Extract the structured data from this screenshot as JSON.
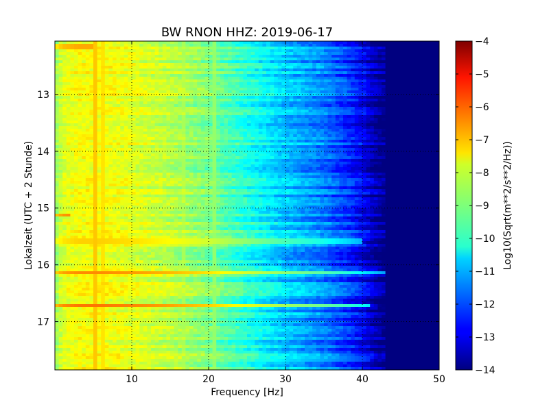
{
  "chart_data": {
    "type": "heatmap",
    "title": "BW RNON HHZ: 2019-06-17",
    "xlabel": "Frequency [Hz]",
    "ylabel": "Lokalzeit (UTC + 2 Stunde)",
    "xlim": [
      0,
      50
    ],
    "ylim": [
      12.06,
      17.85
    ],
    "y_inverted": true,
    "x_ticks": [
      10,
      20,
      30,
      40,
      50
    ],
    "y_ticks": [
      13,
      14,
      15,
      16,
      17
    ],
    "grid": true,
    "colormap": "jet",
    "colorbar": {
      "label": "Log10(Sqrt(m**2/s**2/Hz))",
      "range": [
        -14,
        -4
      ],
      "ticks": [
        -4,
        -5,
        -6,
        -7,
        -8,
        -9,
        -10,
        -11,
        -12,
        -13,
        -14
      ]
    },
    "profile": {
      "freqs": [
        0,
        1,
        3,
        6,
        10,
        15,
        20,
        25,
        30,
        35,
        38,
        40,
        42,
        43,
        50
      ],
      "values": [
        -8.8,
        -8.1,
        -7.8,
        -7.8,
        -8.0,
        -8.4,
        -9.0,
        -9.9,
        -10.8,
        -11.5,
        -12.2,
        -12.8,
        -13.6,
        -14,
        -14
      ]
    },
    "bands": [
      {
        "time": 12.15,
        "value": -6.9,
        "fmax": 5
      },
      {
        "time": 15.13,
        "value": -6.5,
        "fmax": 2
      },
      {
        "time": 15.58,
        "value": -7.3,
        "fmax": 40
      },
      {
        "time": 16.13,
        "value": -6.6,
        "fmax": 43
      },
      {
        "time": 16.72,
        "value": -6.4,
        "fmax": 41
      },
      {
        "time": 17.65,
        "value": -8.3,
        "fmax": 41
      }
    ],
    "lines": [
      {
        "freq": 5.2,
        "value": -7.2
      },
      {
        "freq": 6.2,
        "value": -7.5
      },
      {
        "freq": 16.7,
        "value": -8.6
      },
      {
        "freq": 20.9,
        "value": -8.8
      }
    ]
  }
}
